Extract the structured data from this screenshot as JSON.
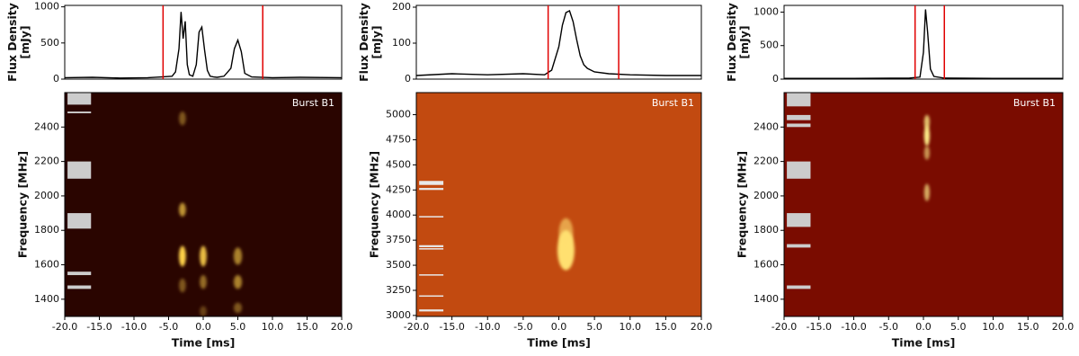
{
  "chart_data": [
    {
      "type": "line",
      "ylabel": [
        "Flux Density",
        "[mJy]"
      ],
      "color": "#000000",
      "x": [
        -20,
        -16,
        -12,
        -8,
        -6,
        -4.5,
        -4,
        -3.5,
        -3.2,
        -2.9,
        -2.6,
        -2.3,
        -2,
        -1.5,
        -1,
        -0.6,
        -0.2,
        0.2,
        0.6,
        1,
        1.5,
        2,
        3,
        4,
        4.5,
        5,
        5.5,
        6,
        7,
        10,
        14,
        20
      ],
      "values": [
        20,
        25,
        15,
        20,
        30,
        40,
        100,
        420,
        930,
        560,
        800,
        200,
        60,
        40,
        200,
        650,
        720,
        400,
        120,
        40,
        30,
        25,
        40,
        150,
        420,
        540,
        380,
        80,
        30,
        20,
        25,
        20
      ],
      "xlim": [
        -20,
        20
      ],
      "ylim": [
        0,
        1020
      ],
      "yticks": [
        0,
        500,
        1000
      ],
      "vlines": [
        -5.8,
        8.6
      ],
      "vline_color": "#e00000"
    },
    {
      "type": "spectrogram",
      "xlabel": "Time [ms]",
      "ylabel": "Frequency [MHz]",
      "annotation": "Burst B1",
      "xlim": [
        -20,
        20
      ],
      "ylim": [
        1300,
        2600
      ],
      "xticks": [
        {
          "value": -20,
          "label": "-20.0"
        },
        {
          "value": -15,
          "label": "-15.0"
        },
        {
          "value": -10,
          "label": "-10.0"
        },
        {
          "value": -5,
          "label": "-5.0"
        },
        {
          "value": 0,
          "label": "0.0"
        },
        {
          "value": 5,
          "label": "5.0"
        },
        {
          "value": 10,
          "label": "10.0"
        },
        {
          "value": 15,
          "label": "15.0"
        },
        {
          "value": 20,
          "label": "20.0"
        }
      ],
      "yticks": [
        1400,
        1600,
        1800,
        2000,
        2200,
        2400
      ],
      "background": "#2a0500",
      "peak_color": "#ffd24a",
      "flag_color": "#cccccc",
      "flag_xlim": [
        -19.6,
        -16.2
      ],
      "flagged": [
        [
          2530,
          2600
        ],
        [
          2480,
          2490
        ],
        [
          2100,
          2200
        ],
        [
          1810,
          1900
        ],
        [
          1540,
          1560
        ],
        [
          1460,
          1480
        ]
      ],
      "components": [
        {
          "t": -3,
          "f": 1650,
          "dt": 0.5,
          "df": 60,
          "i": 1
        },
        {
          "t": -3,
          "f": 1920,
          "dt": 0.5,
          "df": 40,
          "i": 0.7
        },
        {
          "t": -3,
          "f": 2450,
          "dt": 0.5,
          "df": 40,
          "i": 0.4
        },
        {
          "t": -3,
          "f": 1480,
          "dt": 0.5,
          "df": 40,
          "i": 0.4
        },
        {
          "t": 0,
          "f": 1650,
          "dt": 0.5,
          "df": 60,
          "i": 0.9
        },
        {
          "t": 0,
          "f": 1500,
          "dt": 0.5,
          "df": 40,
          "i": 0.5
        },
        {
          "t": 0,
          "f": 1330,
          "dt": 0.5,
          "df": 30,
          "i": 0.3
        },
        {
          "t": 5,
          "f": 1650,
          "dt": 0.6,
          "df": 50,
          "i": 0.6
        },
        {
          "t": 5,
          "f": 1500,
          "dt": 0.6,
          "df": 40,
          "i": 0.6
        },
        {
          "t": 5,
          "f": 1350,
          "dt": 0.6,
          "df": 30,
          "i": 0.4
        }
      ]
    },
    {
      "type": "line",
      "ylabel": [
        "Flux Density",
        "[mJy]"
      ],
      "color": "#000000",
      "x": [
        -20,
        -15,
        -10,
        -5,
        -2,
        -1,
        0,
        0.5,
        1,
        1.5,
        2,
        2.5,
        3,
        3.5,
        4,
        5,
        7,
        10,
        15,
        20
      ],
      "values": [
        10,
        15,
        12,
        15,
        12,
        25,
        90,
        150,
        185,
        190,
        160,
        110,
        65,
        40,
        30,
        20,
        15,
        12,
        10,
        10
      ],
      "xlim": [
        -20,
        20
      ],
      "ylim": [
        0,
        205
      ],
      "yticks": [
        0,
        100,
        200
      ],
      "vlines": [
        -1.5,
        8.4
      ],
      "vline_color": "#e00000"
    },
    {
      "type": "spectrogram",
      "xlabel": "Time [ms]",
      "ylabel": "Frequency [MHz]",
      "annotation": "Burst B1",
      "xlim": [
        -20,
        20
      ],
      "ylim": [
        2990,
        5220
      ],
      "xticks": [
        {
          "value": -20,
          "label": "-20.0"
        },
        {
          "value": -15,
          "label": "-15.0"
        },
        {
          "value": -10,
          "label": "-10.0"
        },
        {
          "value": -5,
          "label": "-5.0"
        },
        {
          "value": 0,
          "label": "0.0"
        },
        {
          "value": 5,
          "label": "5.0"
        },
        {
          "value": 10,
          "label": "10.0"
        },
        {
          "value": 15,
          "label": "15.0"
        },
        {
          "value": 20,
          "label": "20.0"
        }
      ],
      "yticks": [
        3000,
        3250,
        3500,
        3750,
        4000,
        4250,
        4500,
        4750,
        5000
      ],
      "background": "#c24a10",
      "peak_color": "#ffe070",
      "flag_color": "#e8e8e8",
      "flag_xlim": [
        -19.6,
        -16.2
      ],
      "flagged": [
        [
          4300,
          4340
        ],
        [
          4250,
          4270
        ],
        [
          3980,
          3990
        ],
        [
          3680,
          3700
        ],
        [
          3660,
          3670
        ],
        [
          3400,
          3410
        ],
        [
          3190,
          3200
        ],
        [
          3040,
          3060
        ]
      ],
      "components": [
        {
          "t": 1,
          "f": 3650,
          "dt": 1.2,
          "df": 200,
          "i": 1
        },
        {
          "t": 1,
          "f": 3820,
          "dt": 1,
          "df": 150,
          "i": 0.6
        }
      ]
    },
    {
      "type": "line",
      "ylabel": [
        "Flux Density",
        "[mJy]"
      ],
      "color": "#000000",
      "x": [
        -20,
        -10,
        -2,
        -0.5,
        0,
        0.3,
        0.6,
        1,
        1.5,
        3,
        10,
        20
      ],
      "values": [
        10,
        10,
        15,
        30,
        400,
        1040,
        700,
        150,
        40,
        15,
        10,
        10
      ],
      "xlim": [
        -20,
        20
      ],
      "ylim": [
        0,
        1100
      ],
      "yticks": [
        0,
        500,
        1000
      ],
      "vlines": [
        -1.2,
        3.0
      ],
      "vline_color": "#e00000"
    },
    {
      "type": "spectrogram",
      "xlabel": "Time [ms]",
      "ylabel": "Frequency [MHz]",
      "annotation": "Burst B1",
      "xlim": [
        -20,
        20
      ],
      "ylim": [
        1300,
        2600
      ],
      "xticks": [
        {
          "value": -20,
          "label": "-20.0"
        },
        {
          "value": -15,
          "label": "-15.0"
        },
        {
          "value": -10,
          "label": "-10.0"
        },
        {
          "value": -5,
          "label": "-5.0"
        },
        {
          "value": 0,
          "label": "0.0"
        },
        {
          "value": 5,
          "label": "5.0"
        },
        {
          "value": 10,
          "label": "10.0"
        },
        {
          "value": 15,
          "label": "15.0"
        },
        {
          "value": 20,
          "label": "20.0"
        }
      ],
      "yticks": [
        1400,
        1600,
        1800,
        2000,
        2200,
        2400
      ],
      "background": "#7a0c00",
      "peak_color": "#fff08a",
      "flag_color": "#cccccc",
      "flag_xlim": [
        -19.6,
        -16.2
      ],
      "flagged": [
        [
          2520,
          2600
        ],
        [
          2440,
          2470
        ],
        [
          2400,
          2420
        ],
        [
          2100,
          2200
        ],
        [
          1820,
          1900
        ],
        [
          1700,
          1720
        ],
        [
          1460,
          1480
        ]
      ],
      "components": [
        {
          "t": 0.5,
          "f": 2350,
          "dt": 0.4,
          "df": 60,
          "i": 1
        },
        {
          "t": 0.5,
          "f": 2430,
          "dt": 0.4,
          "df": 40,
          "i": 0.8
        },
        {
          "t": 0.5,
          "f": 2020,
          "dt": 0.4,
          "df": 50,
          "i": 0.7
        },
        {
          "t": 0.5,
          "f": 2250,
          "dt": 0.4,
          "df": 40,
          "i": 0.6
        }
      ]
    }
  ]
}
